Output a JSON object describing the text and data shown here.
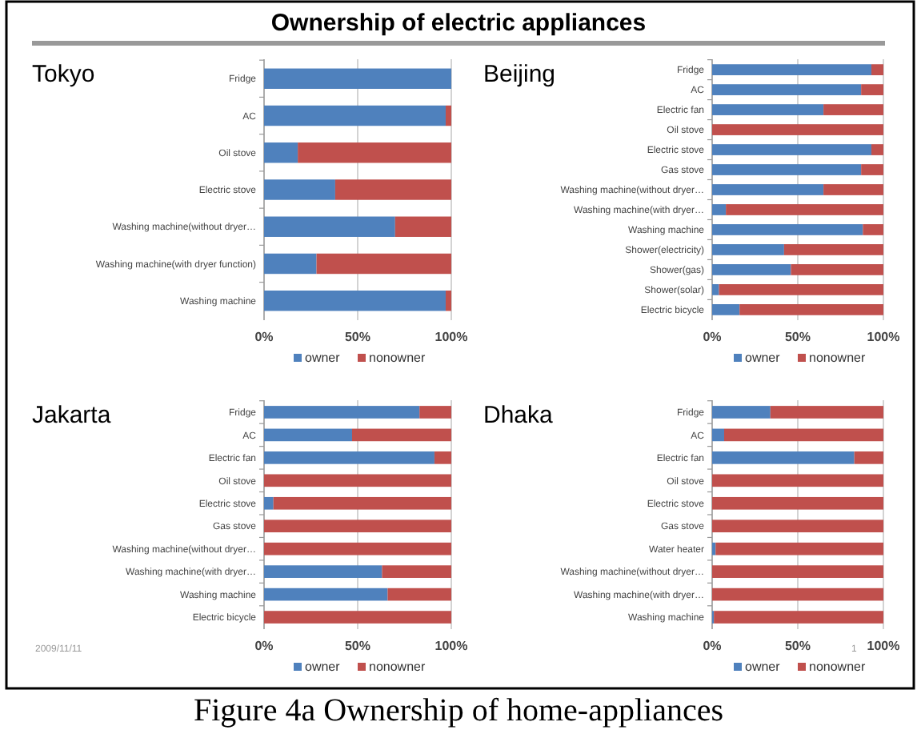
{
  "chart_data": [
    {
      "type": "other",
      "title": "Ownership of electric appliances",
      "annotations": [
        "Figure 4a Ownership of home-appliances"
      ]
    },
    {
      "type": "bar",
      "orientation": "horizontal",
      "stacked": true,
      "title": "Tokyo",
      "categories": [
        "Fridge",
        "AC",
        "Oil stove",
        "Electric stove",
        "Washing machine(without dryer…",
        "Washing machine(with dryer function)",
        "Washing machine"
      ],
      "series": [
        {
          "name": "owner",
          "color": "#4f81bd",
          "values": [
            100,
            97,
            18,
            38,
            70,
            28,
            97
          ]
        },
        {
          "name": "nonowner",
          "color": "#c0504d",
          "values": [
            0,
            3,
            82,
            62,
            30,
            72,
            3
          ]
        }
      ],
      "xlim": [
        0,
        100
      ],
      "xticks": [
        {
          "value": 0,
          "label": "0%"
        },
        {
          "value": 50,
          "label": "50%"
        },
        {
          "value": 100,
          "label": "100%"
        }
      ],
      "grid": "x",
      "legend": "bottom"
    },
    {
      "type": "bar",
      "orientation": "horizontal",
      "stacked": true,
      "title": "Beijing",
      "categories": [
        "Fridge",
        "AC",
        "Electric fan",
        "Oil stove",
        "Electric stove",
        "Gas stove",
        "Washing machine(without dryer…",
        "Washing machine(with dryer…",
        "Washing machine",
        "Shower(electricity)",
        "Shower(gas)",
        "Shower(solar)",
        "Electric bicycle"
      ],
      "series": [
        {
          "name": "owner",
          "color": "#4f81bd",
          "values": [
            93,
            87,
            65,
            0,
            93,
            87,
            65,
            8,
            88,
            42,
            46,
            4,
            16
          ]
        },
        {
          "name": "nonowner",
          "color": "#c0504d",
          "values": [
            7,
            13,
            35,
            100,
            7,
            13,
            35,
            92,
            12,
            58,
            54,
            96,
            84
          ]
        }
      ],
      "xlim": [
        0,
        100
      ],
      "xticks": [
        {
          "value": 0,
          "label": "0%"
        },
        {
          "value": 50,
          "label": "50%"
        },
        {
          "value": 100,
          "label": "100%"
        }
      ],
      "grid": "x",
      "legend": "bottom"
    },
    {
      "type": "bar",
      "orientation": "horizontal",
      "stacked": true,
      "title": "Jakarta",
      "categories": [
        "Fridge",
        "AC",
        "Electric fan",
        "Oil stove",
        "Electric stove",
        "Gas stove",
        "Washing machine(without dryer…",
        "Washing machine(with dryer…",
        "Washing machine",
        "Electric bicycle"
      ],
      "series": [
        {
          "name": "owner",
          "color": "#4f81bd",
          "values": [
            83,
            47,
            91,
            0,
            5,
            0,
            0,
            63,
            66,
            0
          ]
        },
        {
          "name": "nonowner",
          "color": "#c0504d",
          "values": [
            17,
            53,
            9,
            100,
            95,
            100,
            100,
            37,
            34,
            100
          ]
        }
      ],
      "xlim": [
        0,
        100
      ],
      "xticks": [
        {
          "value": 0,
          "label": "0%"
        },
        {
          "value": 50,
          "label": "50%"
        },
        {
          "value": 100,
          "label": "100%"
        }
      ],
      "grid": "x",
      "legend": "bottom",
      "annotations": [
        "2009/11/11"
      ]
    },
    {
      "type": "bar",
      "orientation": "horizontal",
      "stacked": true,
      "title": "Dhaka",
      "categories": [
        "Fridge",
        "AC",
        "Electric fan",
        "Oil stove",
        "Electric stove",
        "Gas stove",
        "Water heater",
        "Washing machine(without dryer…",
        "Washing machine(with dryer…",
        "Washing machine"
      ],
      "series": [
        {
          "name": "owner",
          "color": "#4f81bd",
          "values": [
            34,
            7,
            83,
            0,
            0,
            0,
            2,
            0,
            0,
            1
          ]
        },
        {
          "name": "nonowner",
          "color": "#c0504d",
          "values": [
            66,
            93,
            17,
            100,
            100,
            100,
            98,
            100,
            100,
            99
          ]
        }
      ],
      "xlim": [
        0,
        100
      ],
      "xticks": [
        {
          "value": 0,
          "label": "0%"
        },
        {
          "value": 50,
          "label": "50%"
        },
        {
          "value": 100,
          "label": "100%"
        }
      ],
      "grid": "x",
      "legend": "bottom",
      "annotations": [
        "1"
      ]
    }
  ]
}
